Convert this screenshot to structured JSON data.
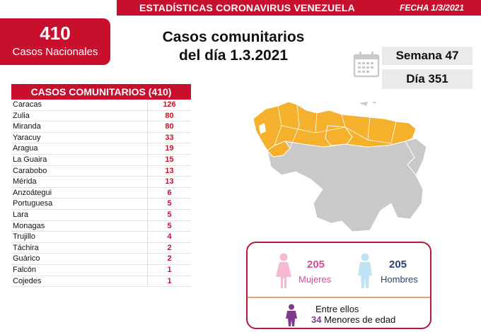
{
  "header": {
    "title": "ESTADÍSTICAS CORONAVIRUS VENEZUELA",
    "date": "FECHA 1/3/2021"
  },
  "national": {
    "count": "410",
    "label": "Casos Nacionales"
  },
  "heading": {
    "line1": "Casos comunitarios",
    "line2": "del día 1.3.2021"
  },
  "calendar": {
    "icon": "calendar-icon",
    "week": "Semana 47",
    "day": "Día 351"
  },
  "table": {
    "title": "CASOS COMUNITARIOS (410)",
    "rows": [
      {
        "state": "Caracas",
        "value": "126"
      },
      {
        "state": "Zulia",
        "value": "80"
      },
      {
        "state": "Miranda",
        "value": "80"
      },
      {
        "state": "Yaracuy",
        "value": "33"
      },
      {
        "state": "Aragua",
        "value": "19"
      },
      {
        "state": "La Guaira",
        "value": "15"
      },
      {
        "state": "Carabobo",
        "value": "13"
      },
      {
        "state": "Mérida",
        "value": "13"
      },
      {
        "state": "Anzoátegui",
        "value": "6"
      },
      {
        "state": "Portuguesa",
        "value": "5"
      },
      {
        "state": "Lara",
        "value": "5"
      },
      {
        "state": "Monagas",
        "value": "5"
      },
      {
        "state": "Trujillo",
        "value": "4"
      },
      {
        "state": "Táchira",
        "value": "2"
      },
      {
        "state": "Guárico",
        "value": "2"
      },
      {
        "state": "Falcón",
        "value": "1"
      },
      {
        "state": "Cojedes",
        "value": "1"
      }
    ]
  },
  "gender": {
    "women_count": "205",
    "women_label": "Mujeres",
    "men_count": "205",
    "men_label": "Hombres",
    "minors_intro": "Entre ellos",
    "minors_count": "34",
    "minors_label": "Menores de edad"
  },
  "colors": {
    "brand_red": "#c8102e",
    "map_affected": "#f5b02c",
    "map_other": "#c9c9c9",
    "women": "#e0479b",
    "men": "#2d3f7a",
    "minors": "#7e3b8c"
  }
}
